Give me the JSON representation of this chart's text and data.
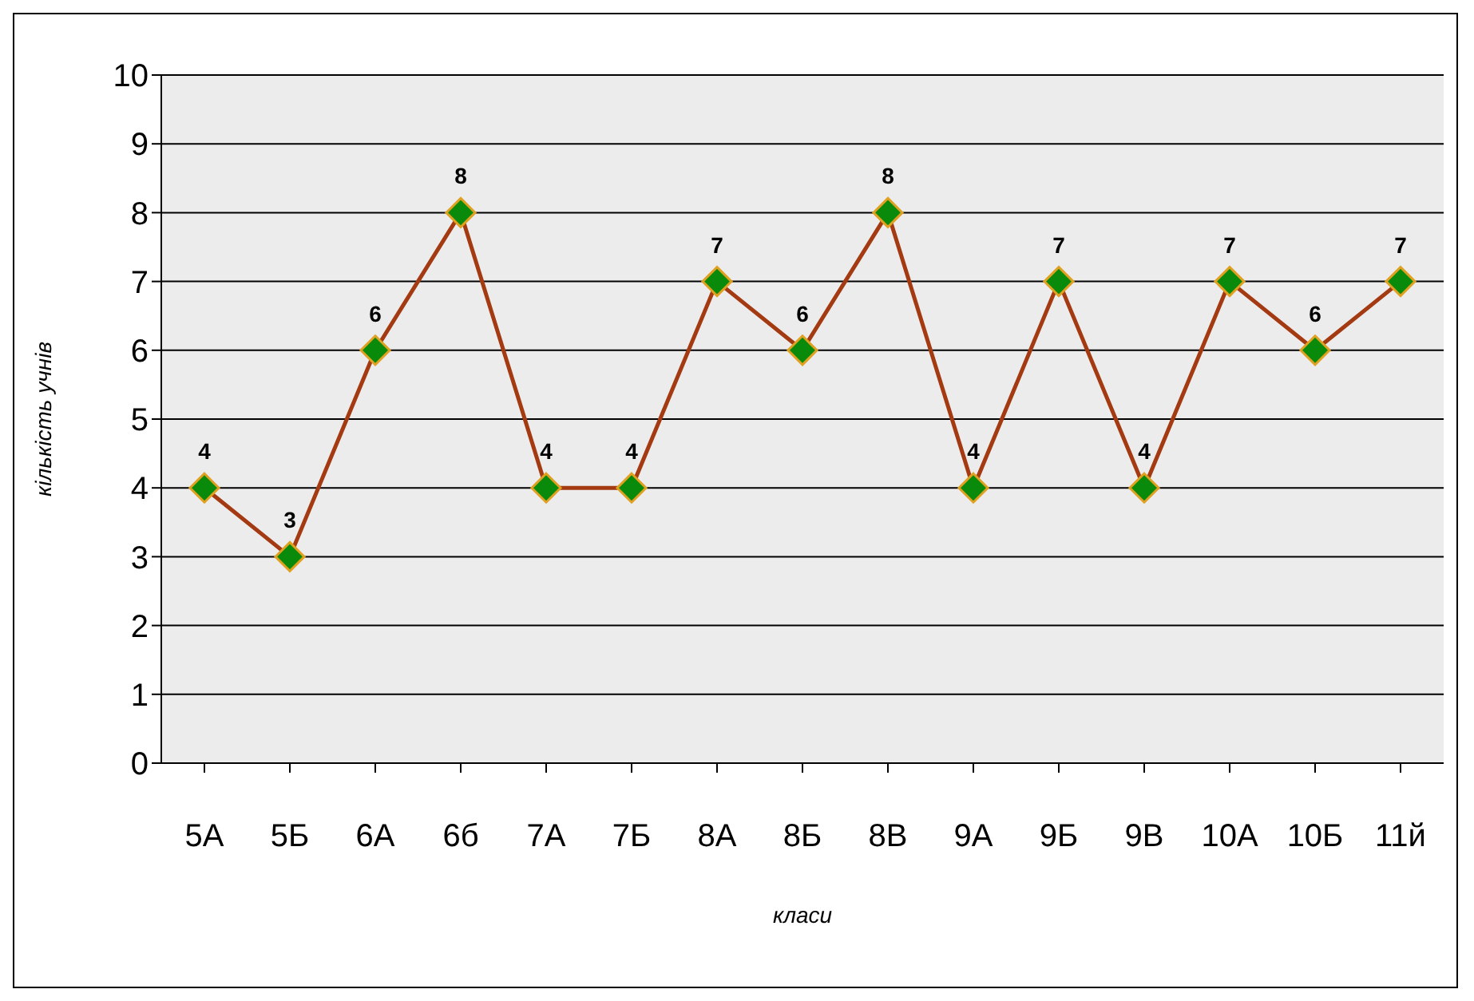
{
  "chart_data": {
    "type": "line",
    "xlabel": "класи",
    "ylabel": "кількість учнів",
    "categories": [
      "5А",
      "5Б",
      "6А",
      "6б",
      "7А",
      "7Б",
      "8А",
      "8Б",
      "8В",
      "9А",
      "9Б",
      "9В",
      "10А",
      "10Б",
      "11й"
    ],
    "series": [
      {
        "color": "#a33a12",
        "values": [
          4,
          3,
          6,
          8,
          4,
          4,
          7,
          6,
          8,
          4,
          7,
          4,
          7,
          6,
          7
        ]
      }
    ],
    "ylim": [
      0,
      10
    ],
    "yticks": [
      0,
      1,
      2,
      3,
      4,
      5,
      6,
      7,
      8,
      9,
      10
    ],
    "grid": "y",
    "legend": false,
    "marker": "diamond",
    "line_style": "solid",
    "data_labels": true
  }
}
